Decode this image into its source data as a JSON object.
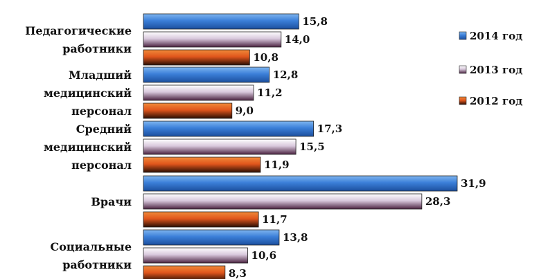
{
  "chart_data": {
    "type": "bar",
    "orientation": "horizontal",
    "categories": [
      [
        "Педагогические",
        "работники"
      ],
      [
        "Младший",
        "медицинский",
        "персонал"
      ],
      [
        "Средний",
        "медицинский",
        "персонал"
      ],
      [
        "Врачи"
      ],
      [
        "Социальные",
        "работники"
      ]
    ],
    "series": [
      {
        "name": "2014 год",
        "values": [
          15.8,
          12.8,
          17.3,
          31.9,
          13.8
        ],
        "labels": [
          "15,8",
          "12,8",
          "17,3",
          "31,9",
          "13,8"
        ],
        "color": "#3b7fd8",
        "colorDark": "#1c4f9e",
        "colorLight": "#7fb6f0"
      },
      {
        "name": "2013 год",
        "values": [
          14.0,
          11.2,
          15.5,
          28.3,
          10.6
        ],
        "labels": [
          "14,0",
          "11,2",
          "15,5",
          "28,3",
          "10,6"
        ],
        "color": "#d8c8dc",
        "colorDark": "#4a2240",
        "colorLight": "#ffffff"
      },
      {
        "name": "2012 год",
        "values": [
          10.8,
          9.0,
          11.9,
          11.7,
          8.3
        ],
        "labels": [
          "10,8",
          "9,0",
          "11,9",
          "11,7",
          "8,3"
        ],
        "color": "#e0561c",
        "colorDark": "#2a0e04",
        "colorLight": "#f08a3a"
      }
    ],
    "xlim": [
      0,
      32
    ],
    "grid": false,
    "legend": "right"
  }
}
